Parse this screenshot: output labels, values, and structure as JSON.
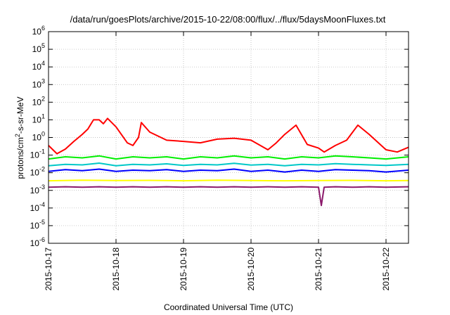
{
  "chart_data": {
    "type": "line",
    "title": "/data/run/goesPlots/archive/2015-10-22/08:00/flux/../flux/5daysMoonFluxes.txt",
    "xlabel": "Coordinated Universal Time (UTC)",
    "ylabel": {
      "base": "protons/cm",
      "sup": "2",
      "rest": "-s-sr-MeV"
    },
    "yscale": "log",
    "ylim": [
      1e-06,
      1000000.0
    ],
    "xlim": [
      "2015-10-17 00:00",
      "2015-10-22 08:00"
    ],
    "grid": true,
    "legend": "none",
    "y_ticks": [
      {
        "exp": "-6",
        "value": 1e-06
      },
      {
        "exp": "-5",
        "value": 1e-05
      },
      {
        "exp": "-4",
        "value": 0.0001
      },
      {
        "exp": "-3",
        "value": 0.001
      },
      {
        "exp": "-2",
        "value": 0.01
      },
      {
        "exp": "-1",
        "value": 0.1
      },
      {
        "exp": "0",
        "value": 1
      },
      {
        "exp": "1",
        "value": 10
      },
      {
        "exp": "2",
        "value": 100
      },
      {
        "exp": "3",
        "value": 1000
      },
      {
        "exp": "4",
        "value": 10000
      },
      {
        "exp": "5",
        "value": 100000
      },
      {
        "exp": "6",
        "value": 1000000
      }
    ],
    "y_tick_base": "10",
    "x_ticks": [
      "2015-10-17",
      "2015-10-18",
      "2015-10-19",
      "2015-10-20",
      "2015-10-21",
      "2015-10-22"
    ],
    "series": [
      {
        "color": "#ff0000",
        "x": [
          "2015-10-17 00:00",
          "2015-10-17 03:00",
          "2015-10-17 06:00",
          "2015-10-17 09:00",
          "2015-10-17 12:00",
          "2015-10-17 14:00",
          "2015-10-17 16:00",
          "2015-10-17 18:00",
          "2015-10-17 19:30",
          "2015-10-17 21:00",
          "2015-10-18 00:00",
          "2015-10-18 04:00",
          "2015-10-18 06:00",
          "2015-10-18 08:00",
          "2015-10-18 09:00",
          "2015-10-18 12:00",
          "2015-10-18 18:00",
          "2015-10-19 00:00",
          "2015-10-19 06:00",
          "2015-10-19 12:00",
          "2015-10-19 18:00",
          "2015-10-20 00:00",
          "2015-10-20 06:00",
          "2015-10-20 09:00",
          "2015-10-20 12:00",
          "2015-10-20 16:00",
          "2015-10-20 20:00",
          "2015-10-21 00:00",
          "2015-10-21 02:00",
          "2015-10-21 06:00",
          "2015-10-21 10:00",
          "2015-10-21 14:00",
          "2015-10-21 18:00",
          "2015-10-22 00:00",
          "2015-10-22 04:00",
          "2015-10-22 08:00"
        ],
        "y": [
          0.35,
          0.12,
          0.22,
          0.6,
          1.5,
          3,
          10,
          10,
          6,
          12,
          4,
          0.5,
          0.35,
          1,
          7,
          2,
          0.7,
          0.6,
          0.5,
          0.8,
          0.9,
          0.7,
          0.2,
          0.5,
          1.5,
          5,
          0.4,
          0.25,
          0.15,
          0.35,
          0.7,
          5,
          1.5,
          0.2,
          0.15,
          0.28
        ]
      },
      {
        "color": "#00ee00",
        "x": [
          "2015-10-17 00:00",
          "2015-10-17 06:00",
          "2015-10-17 12:00",
          "2015-10-17 18:00",
          "2015-10-18 00:00",
          "2015-10-18 06:00",
          "2015-10-18 12:00",
          "2015-10-18 18:00",
          "2015-10-19 00:00",
          "2015-10-19 06:00",
          "2015-10-19 12:00",
          "2015-10-19 18:00",
          "2015-10-20 00:00",
          "2015-10-20 06:00",
          "2015-10-20 12:00",
          "2015-10-20 18:00",
          "2015-10-21 00:00",
          "2015-10-21 06:00",
          "2015-10-21 12:00",
          "2015-10-21 18:00",
          "2015-10-22 00:00",
          "2015-10-22 08:00"
        ],
        "y": [
          0.06,
          0.08,
          0.07,
          0.09,
          0.06,
          0.08,
          0.07,
          0.08,
          0.06,
          0.08,
          0.07,
          0.09,
          0.07,
          0.08,
          0.06,
          0.08,
          0.07,
          0.09,
          0.08,
          0.07,
          0.06,
          0.08
        ]
      },
      {
        "color": "#00c8c8",
        "x": [
          "2015-10-17 00:00",
          "2015-10-17 06:00",
          "2015-10-17 12:00",
          "2015-10-17 18:00",
          "2015-10-18 00:00",
          "2015-10-18 06:00",
          "2015-10-18 12:00",
          "2015-10-18 18:00",
          "2015-10-19 00:00",
          "2015-10-19 06:00",
          "2015-10-19 12:00",
          "2015-10-19 18:00",
          "2015-10-20 00:00",
          "2015-10-20 06:00",
          "2015-10-20 12:00",
          "2015-10-20 18:00",
          "2015-10-21 00:00",
          "2015-10-21 06:00",
          "2015-10-21 12:00",
          "2015-10-21 18:00",
          "2015-10-22 00:00",
          "2015-10-22 08:00"
        ],
        "y": [
          0.025,
          0.03,
          0.028,
          0.035,
          0.025,
          0.03,
          0.028,
          0.032,
          0.026,
          0.03,
          0.028,
          0.034,
          0.027,
          0.03,
          0.025,
          0.03,
          0.028,
          0.033,
          0.03,
          0.028,
          0.026,
          0.03
        ]
      },
      {
        "color": "#0000ff",
        "x": [
          "2015-10-17 00:00",
          "2015-10-17 06:00",
          "2015-10-17 12:00",
          "2015-10-17 18:00",
          "2015-10-18 00:00",
          "2015-10-18 06:00",
          "2015-10-18 12:00",
          "2015-10-18 18:00",
          "2015-10-19 00:00",
          "2015-10-19 06:00",
          "2015-10-19 12:00",
          "2015-10-19 18:00",
          "2015-10-20 00:00",
          "2015-10-20 06:00",
          "2015-10-20 12:00",
          "2015-10-20 18:00",
          "2015-10-21 00:00",
          "2015-10-21 06:00",
          "2015-10-21 12:00",
          "2015-10-21 18:00",
          "2015-10-22 00:00",
          "2015-10-22 08:00"
        ],
        "y": [
          0.012,
          0.015,
          0.013,
          0.016,
          0.012,
          0.014,
          0.013,
          0.015,
          0.012,
          0.014,
          0.013,
          0.016,
          0.012,
          0.014,
          0.011,
          0.014,
          0.012,
          0.015,
          0.014,
          0.013,
          0.011,
          0.014
        ]
      },
      {
        "color": "#ffff00",
        "x": [
          "2015-10-17 00:00",
          "2015-10-17 12:00",
          "2015-10-18 00:00",
          "2015-10-18 12:00",
          "2015-10-19 00:00",
          "2015-10-19 12:00",
          "2015-10-20 00:00",
          "2015-10-20 12:00",
          "2015-10-21 00:00",
          "2015-10-21 12:00",
          "2015-10-22 00:00",
          "2015-10-22 08:00"
        ],
        "y": [
          0.0035,
          0.0038,
          0.0036,
          0.0037,
          0.0035,
          0.0038,
          0.0036,
          0.0035,
          0.0036,
          0.0037,
          0.0035,
          0.0036
        ]
      },
      {
        "color": "#8b1a6b",
        "x": [
          "2015-10-17 00:00",
          "2015-10-17 06:00",
          "2015-10-17 12:00",
          "2015-10-17 18:00",
          "2015-10-18 00:00",
          "2015-10-18 06:00",
          "2015-10-18 12:00",
          "2015-10-18 18:00",
          "2015-10-19 00:00",
          "2015-10-19 06:00",
          "2015-10-19 12:00",
          "2015-10-19 18:00",
          "2015-10-20 00:00",
          "2015-10-20 06:00",
          "2015-10-20 12:00",
          "2015-10-20 18:00",
          "2015-10-21 00:00",
          "2015-10-21 01:00",
          "2015-10-21 02:00",
          "2015-10-21 06:00",
          "2015-10-21 12:00",
          "2015-10-21 18:00",
          "2015-10-22 00:00",
          "2015-10-22 08:00"
        ],
        "y": [
          0.0015,
          0.0016,
          0.0015,
          0.0016,
          0.0015,
          0.0016,
          0.0015,
          0.0016,
          0.0015,
          0.0016,
          0.0015,
          0.0016,
          0.0015,
          0.0016,
          0.0015,
          0.0016,
          0.0015,
          0.00014,
          0.0015,
          0.0016,
          0.0015,
          0.0016,
          0.0015,
          0.0016
        ]
      }
    ]
  }
}
